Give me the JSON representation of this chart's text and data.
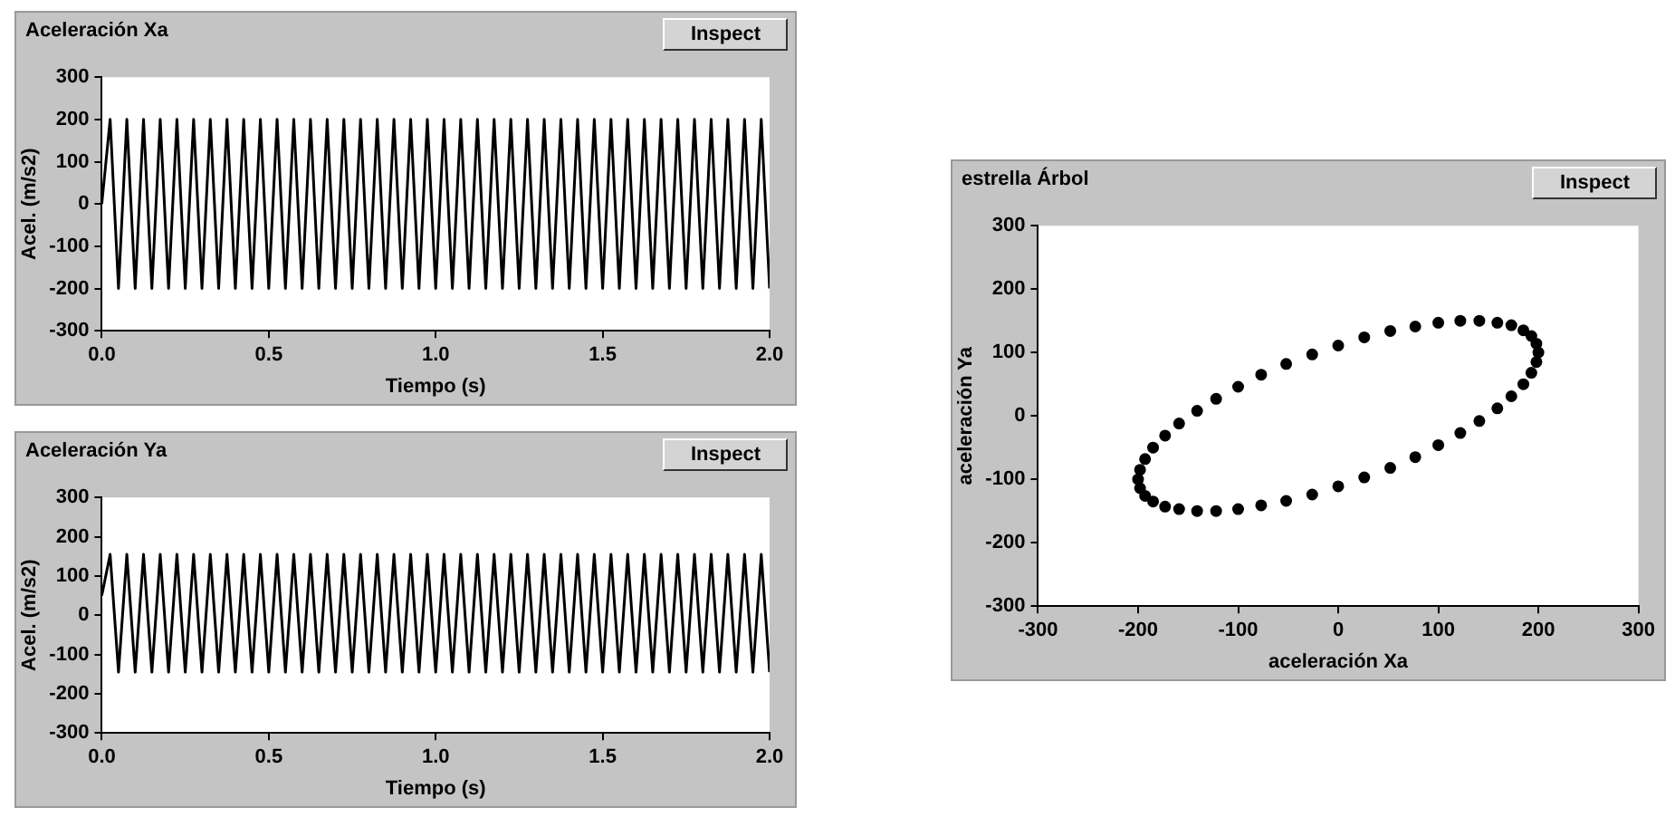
{
  "chart_data": [
    {
      "type": "line",
      "title": "Aceleración Xa",
      "xlabel": "Tiempo (s)",
      "ylabel": "Acel. (m/s2)",
      "annotations": [
        "Inspect"
      ],
      "xlim": [
        0,
        2
      ],
      "xticks": [
        {
          "value": 0,
          "label": "0.0"
        },
        {
          "value": 0.5,
          "label": "0.5"
        },
        {
          "value": 1,
          "label": "1.0"
        },
        {
          "value": 1.5,
          "label": "1.5"
        },
        {
          "value": 2,
          "label": "2.0"
        }
      ],
      "ylim": [
        -300,
        300
      ],
      "yticks": [
        -300,
        -200,
        -100,
        0,
        100,
        200,
        300
      ],
      "grid": false,
      "legend": false,
      "series": [
        {
          "color": "#000000",
          "x": [
            0,
            0.025,
            0.05,
            0.075,
            0.1,
            0.125,
            0.15,
            0.175,
            0.2,
            0.225,
            0.25,
            0.275,
            0.3,
            0.325,
            0.35,
            0.375,
            0.4,
            0.425,
            0.45,
            0.475,
            0.5,
            0.525,
            0.55,
            0.575,
            0.6,
            0.625,
            0.65,
            0.675,
            0.7,
            0.725,
            0.75,
            0.775,
            0.8,
            0.825,
            0.85,
            0.875,
            0.9,
            0.925,
            0.95,
            0.975,
            1,
            1.025,
            1.05,
            1.075,
            1.1,
            1.125,
            1.15,
            1.175,
            1.2,
            1.225,
            1.25,
            1.275,
            1.3,
            1.325,
            1.35,
            1.375,
            1.4,
            1.425,
            1.45,
            1.475,
            1.5,
            1.525,
            1.55,
            1.575,
            1.6,
            1.625,
            1.65,
            1.675,
            1.7,
            1.725,
            1.75,
            1.775,
            1.8,
            1.825,
            1.85,
            1.875,
            1.9,
            1.925,
            1.95,
            1.975,
            2
          ],
          "values": [
            0,
            200,
            -200,
            200,
            -200,
            200,
            -200,
            200,
            -200,
            200,
            -200,
            200,
            -200,
            200,
            -200,
            200,
            -200,
            200,
            -200,
            200,
            -200,
            200,
            -200,
            200,
            -200,
            200,
            -200,
            200,
            -200,
            200,
            -200,
            200,
            -200,
            200,
            -200,
            200,
            -200,
            200,
            -200,
            200,
            -200,
            200,
            -200,
            200,
            -200,
            200,
            -200,
            200,
            -200,
            200,
            -200,
            200,
            -200,
            200,
            -200,
            200,
            -200,
            200,
            -200,
            200,
            -200,
            200,
            -200,
            200,
            -200,
            200,
            -200,
            200,
            -200,
            200,
            -200,
            200,
            -200,
            200,
            -200,
            200,
            -200,
            200,
            -200,
            200,
            -200
          ]
        }
      ]
    },
    {
      "type": "line",
      "title": "Aceleración Ya",
      "xlabel": "Tiempo (s)",
      "ylabel": "Acel. (m/s2)",
      "annotations": [
        "Inspect"
      ],
      "xlim": [
        0,
        2
      ],
      "xticks": [
        {
          "value": 0,
          "label": "0.0"
        },
        {
          "value": 0.5,
          "label": "0.5"
        },
        {
          "value": 1,
          "label": "1.0"
        },
        {
          "value": 1.5,
          "label": "1.5"
        },
        {
          "value": 2,
          "label": "2.0"
        }
      ],
      "ylim": [
        -300,
        300
      ],
      "yticks": [
        -300,
        -200,
        -100,
        0,
        100,
        200,
        300
      ],
      "grid": false,
      "legend": false,
      "series": [
        {
          "color": "#000000",
          "x": [
            0,
            0.025,
            0.05,
            0.075,
            0.1,
            0.125,
            0.15,
            0.175,
            0.2,
            0.225,
            0.25,
            0.275,
            0.3,
            0.325,
            0.35,
            0.375,
            0.4,
            0.425,
            0.45,
            0.475,
            0.5,
            0.525,
            0.55,
            0.575,
            0.6,
            0.625,
            0.65,
            0.675,
            0.7,
            0.725,
            0.75,
            0.775,
            0.8,
            0.825,
            0.85,
            0.875,
            0.9,
            0.925,
            0.95,
            0.975,
            1,
            1.025,
            1.05,
            1.075,
            1.1,
            1.125,
            1.15,
            1.175,
            1.2,
            1.225,
            1.25,
            1.275,
            1.3,
            1.325,
            1.35,
            1.375,
            1.4,
            1.425,
            1.45,
            1.475,
            1.5,
            1.525,
            1.55,
            1.575,
            1.6,
            1.625,
            1.65,
            1.675,
            1.7,
            1.725,
            1.75,
            1.775,
            1.8,
            1.825,
            1.85,
            1.875,
            1.9,
            1.925,
            1.95,
            1.975,
            2
          ],
          "values": [
            50,
            155,
            -145,
            155,
            -145,
            155,
            -145,
            155,
            -145,
            155,
            -145,
            155,
            -145,
            155,
            -145,
            155,
            -145,
            155,
            -145,
            155,
            -145,
            155,
            -145,
            155,
            -145,
            155,
            -145,
            155,
            -145,
            155,
            -145,
            155,
            -145,
            155,
            -145,
            155,
            -145,
            155,
            -145,
            155,
            -145,
            155,
            -145,
            155,
            -145,
            155,
            -145,
            155,
            -145,
            155,
            -145,
            155,
            -145,
            155,
            -145,
            155,
            -145,
            155,
            -145,
            155,
            -145,
            155,
            -145,
            155,
            -145,
            155,
            -145,
            155,
            -145,
            155,
            -145,
            155,
            -145,
            155,
            -145,
            155,
            -145,
            155,
            -145,
            155,
            -145
          ]
        }
      ]
    },
    {
      "type": "scatter",
      "marker": "circle",
      "title": "estrella Árbol",
      "xlabel": "aceleración Xa",
      "ylabel": "aceleración Ya",
      "annotations": [
        "Inspect"
      ],
      "xlim": [
        -300,
        300
      ],
      "xticks": [
        -300,
        -200,
        -100,
        0,
        100,
        200,
        300
      ],
      "ylim": [
        -300,
        300
      ],
      "yticks": [
        -300,
        -200,
        -100,
        0,
        100,
        200,
        300
      ],
      "grid": false,
      "legend": false,
      "series": [
        {
          "color": "#000000",
          "x": [
            200,
            198,
            193,
            185,
            173,
            159,
            141,
            122,
            100,
            77,
            52,
            26,
            0,
            -26,
            -52,
            -77,
            -100,
            -122,
            -141,
            -159,
            -173,
            -185,
            -193,
            -198,
            -200,
            -198,
            -193,
            -185,
            -173,
            -159,
            -141,
            -122,
            -100,
            -77,
            -52,
            -26,
            0,
            26,
            52,
            77,
            100,
            122,
            141,
            159,
            173,
            185,
            193,
            198
          ],
          "values": [
            100,
            114,
            126,
            135,
            143,
            147,
            150,
            150,
            147,
            141,
            134,
            124,
            111,
            97,
            82,
            65,
            46,
            27,
            8,
            -12,
            -31,
            -50,
            -68,
            -85,
            -100,
            -114,
            -126,
            -135,
            -143,
            -147,
            -150,
            -150,
            -147,
            -141,
            -134,
            -124,
            -111,
            -97,
            -82,
            -65,
            -46,
            -27,
            -8,
            12,
            31,
            50,
            68,
            85
          ]
        }
      ]
    }
  ]
}
